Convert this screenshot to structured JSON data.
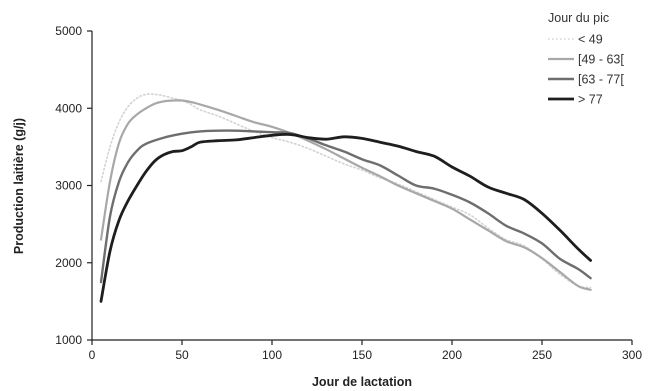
{
  "chart_data": {
    "type": "line",
    "title": "",
    "xlabel": "Jour de lactation",
    "ylabel": "Production laitière (g/j)",
    "xlim": [
      0,
      300
    ],
    "ylim": [
      1000,
      5000
    ],
    "xticks": [
      0,
      50,
      100,
      150,
      200,
      250,
      300
    ],
    "yticks": [
      1000,
      2000,
      3000,
      4000,
      5000
    ],
    "grid": false,
    "legend": {
      "title": "Jour du pic",
      "position": "top-right"
    },
    "series": [
      {
        "name": "< 49",
        "color": "#d3d3d3",
        "dash": "dotted",
        "points": [
          [
            5,
            3050
          ],
          [
            10,
            3500
          ],
          [
            15,
            3820
          ],
          [
            20,
            4020
          ],
          [
            25,
            4130
          ],
          [
            30,
            4180
          ],
          [
            35,
            4180
          ],
          [
            40,
            4160
          ],
          [
            45,
            4130
          ],
          [
            50,
            4100
          ],
          [
            55,
            4050
          ],
          [
            60,
            3980
          ],
          [
            70,
            3900
          ],
          [
            80,
            3800
          ],
          [
            90,
            3700
          ],
          [
            100,
            3620
          ],
          [
            110,
            3560
          ],
          [
            120,
            3480
          ],
          [
            130,
            3380
          ],
          [
            140,
            3280
          ],
          [
            150,
            3200
          ],
          [
            160,
            3100
          ],
          [
            170,
            3020
          ],
          [
            180,
            2920
          ],
          [
            190,
            2820
          ],
          [
            200,
            2720
          ],
          [
            210,
            2620
          ],
          [
            220,
            2450
          ],
          [
            230,
            2300
          ],
          [
            240,
            2220
          ],
          [
            250,
            2050
          ],
          [
            260,
            1850
          ],
          [
            270,
            1700
          ],
          [
            277,
            1680
          ]
        ]
      },
      {
        "name": "[49 - 63[",
        "color": "#a8a8a8",
        "dash": "solid",
        "points": [
          [
            5,
            2300
          ],
          [
            10,
            3050
          ],
          [
            15,
            3550
          ],
          [
            20,
            3800
          ],
          [
            25,
            3920
          ],
          [
            30,
            4000
          ],
          [
            35,
            4060
          ],
          [
            40,
            4090
          ],
          [
            45,
            4100
          ],
          [
            50,
            4100
          ],
          [
            55,
            4080
          ],
          [
            60,
            4050
          ],
          [
            70,
            3980
          ],
          [
            80,
            3900
          ],
          [
            90,
            3820
          ],
          [
            100,
            3760
          ],
          [
            110,
            3680
          ],
          [
            120,
            3580
          ],
          [
            130,
            3470
          ],
          [
            140,
            3350
          ],
          [
            150,
            3230
          ],
          [
            160,
            3120
          ],
          [
            170,
            3000
          ],
          [
            180,
            2900
          ],
          [
            190,
            2800
          ],
          [
            200,
            2700
          ],
          [
            210,
            2560
          ],
          [
            220,
            2420
          ],
          [
            230,
            2280
          ],
          [
            240,
            2200
          ],
          [
            250,
            2060
          ],
          [
            260,
            1880
          ],
          [
            270,
            1700
          ],
          [
            277,
            1650
          ]
        ]
      },
      {
        "name": "[63 - 77[",
        "color": "#6e6e6e",
        "dash": "solid",
        "points": [
          [
            5,
            1750
          ],
          [
            10,
            2600
          ],
          [
            15,
            3050
          ],
          [
            20,
            3300
          ],
          [
            25,
            3450
          ],
          [
            30,
            3540
          ],
          [
            40,
            3620
          ],
          [
            50,
            3670
          ],
          [
            60,
            3700
          ],
          [
            70,
            3710
          ],
          [
            80,
            3710
          ],
          [
            90,
            3700
          ],
          [
            100,
            3690
          ],
          [
            110,
            3680
          ],
          [
            120,
            3610
          ],
          [
            130,
            3520
          ],
          [
            140,
            3440
          ],
          [
            150,
            3340
          ],
          [
            160,
            3260
          ],
          [
            170,
            3130
          ],
          [
            180,
            3000
          ],
          [
            190,
            2960
          ],
          [
            200,
            2880
          ],
          [
            210,
            2780
          ],
          [
            220,
            2640
          ],
          [
            230,
            2480
          ],
          [
            240,
            2380
          ],
          [
            250,
            2250
          ],
          [
            260,
            2050
          ],
          [
            270,
            1920
          ],
          [
            277,
            1800
          ]
        ]
      },
      {
        "name": "> 77",
        "color": "#1e1e1e",
        "dash": "solid",
        "points": [
          [
            5,
            1500
          ],
          [
            10,
            2150
          ],
          [
            15,
            2550
          ],
          [
            20,
            2800
          ],
          [
            25,
            3000
          ],
          [
            30,
            3180
          ],
          [
            35,
            3320
          ],
          [
            40,
            3400
          ],
          [
            45,
            3440
          ],
          [
            50,
            3450
          ],
          [
            55,
            3500
          ],
          [
            60,
            3560
          ],
          [
            70,
            3580
          ],
          [
            80,
            3590
          ],
          [
            90,
            3620
          ],
          [
            100,
            3650
          ],
          [
            110,
            3660
          ],
          [
            120,
            3620
          ],
          [
            130,
            3600
          ],
          [
            140,
            3630
          ],
          [
            150,
            3610
          ],
          [
            160,
            3560
          ],
          [
            170,
            3510
          ],
          [
            180,
            3440
          ],
          [
            190,
            3380
          ],
          [
            200,
            3240
          ],
          [
            210,
            3120
          ],
          [
            220,
            2980
          ],
          [
            230,
            2900
          ],
          [
            240,
            2820
          ],
          [
            250,
            2640
          ],
          [
            260,
            2420
          ],
          [
            270,
            2180
          ],
          [
            277,
            2030
          ]
        ]
      }
    ]
  }
}
